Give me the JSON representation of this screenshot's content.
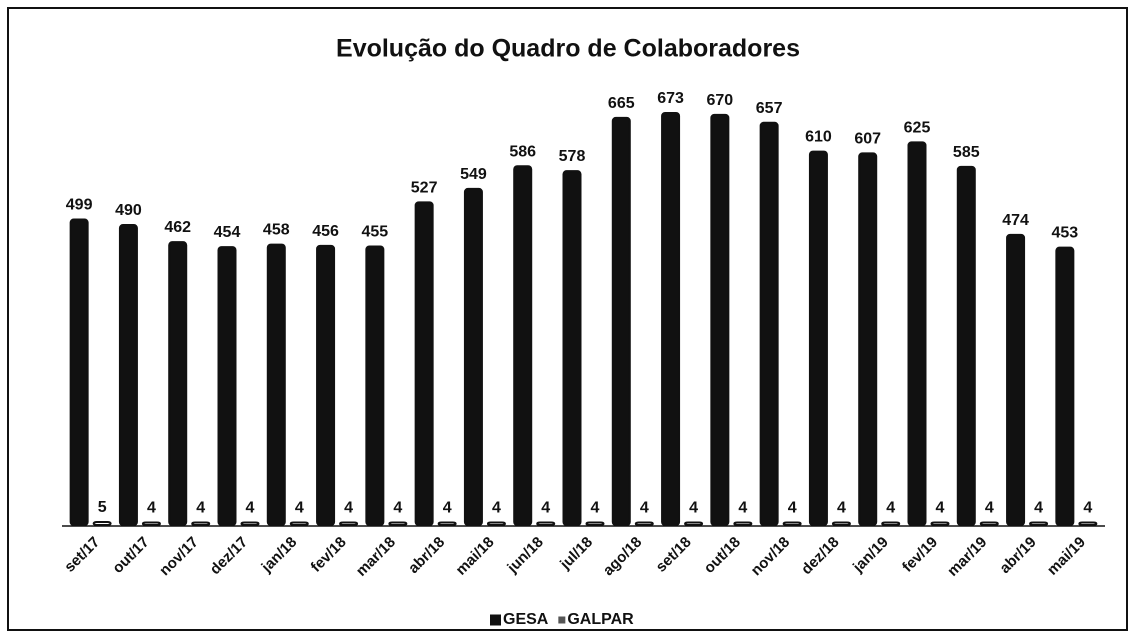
{
  "chart_data": {
    "type": "bar",
    "title": "Evolução do Quadro de Colaboradores",
    "categories": [
      "set/17",
      "out/17",
      "nov/17",
      "dez/17",
      "jan/18",
      "fev/18",
      "mar/18",
      "abr/18",
      "mai/18",
      "jun/18",
      "jul/18",
      "ago/18",
      "set/18",
      "out/18",
      "nov/18",
      "dez/18",
      "jan/19",
      "fev/19",
      "mar/19",
      "abr/19",
      "mai/19"
    ],
    "series": [
      {
        "name": "GESA",
        "color": "#111111",
        "values": [
          499,
          490,
          462,
          454,
          458,
          456,
          455,
          527,
          549,
          586,
          578,
          665,
          673,
          670,
          657,
          610,
          607,
          625,
          585,
          474,
          453
        ]
      },
      {
        "name": "GALPAR",
        "color": "#ffffff",
        "values": [
          5,
          4,
          4,
          4,
          4,
          4,
          4,
          4,
          4,
          4,
          4,
          4,
          4,
          4,
          4,
          4,
          4,
          4,
          4,
          4,
          4
        ]
      }
    ],
    "legend": "bottom"
  }
}
